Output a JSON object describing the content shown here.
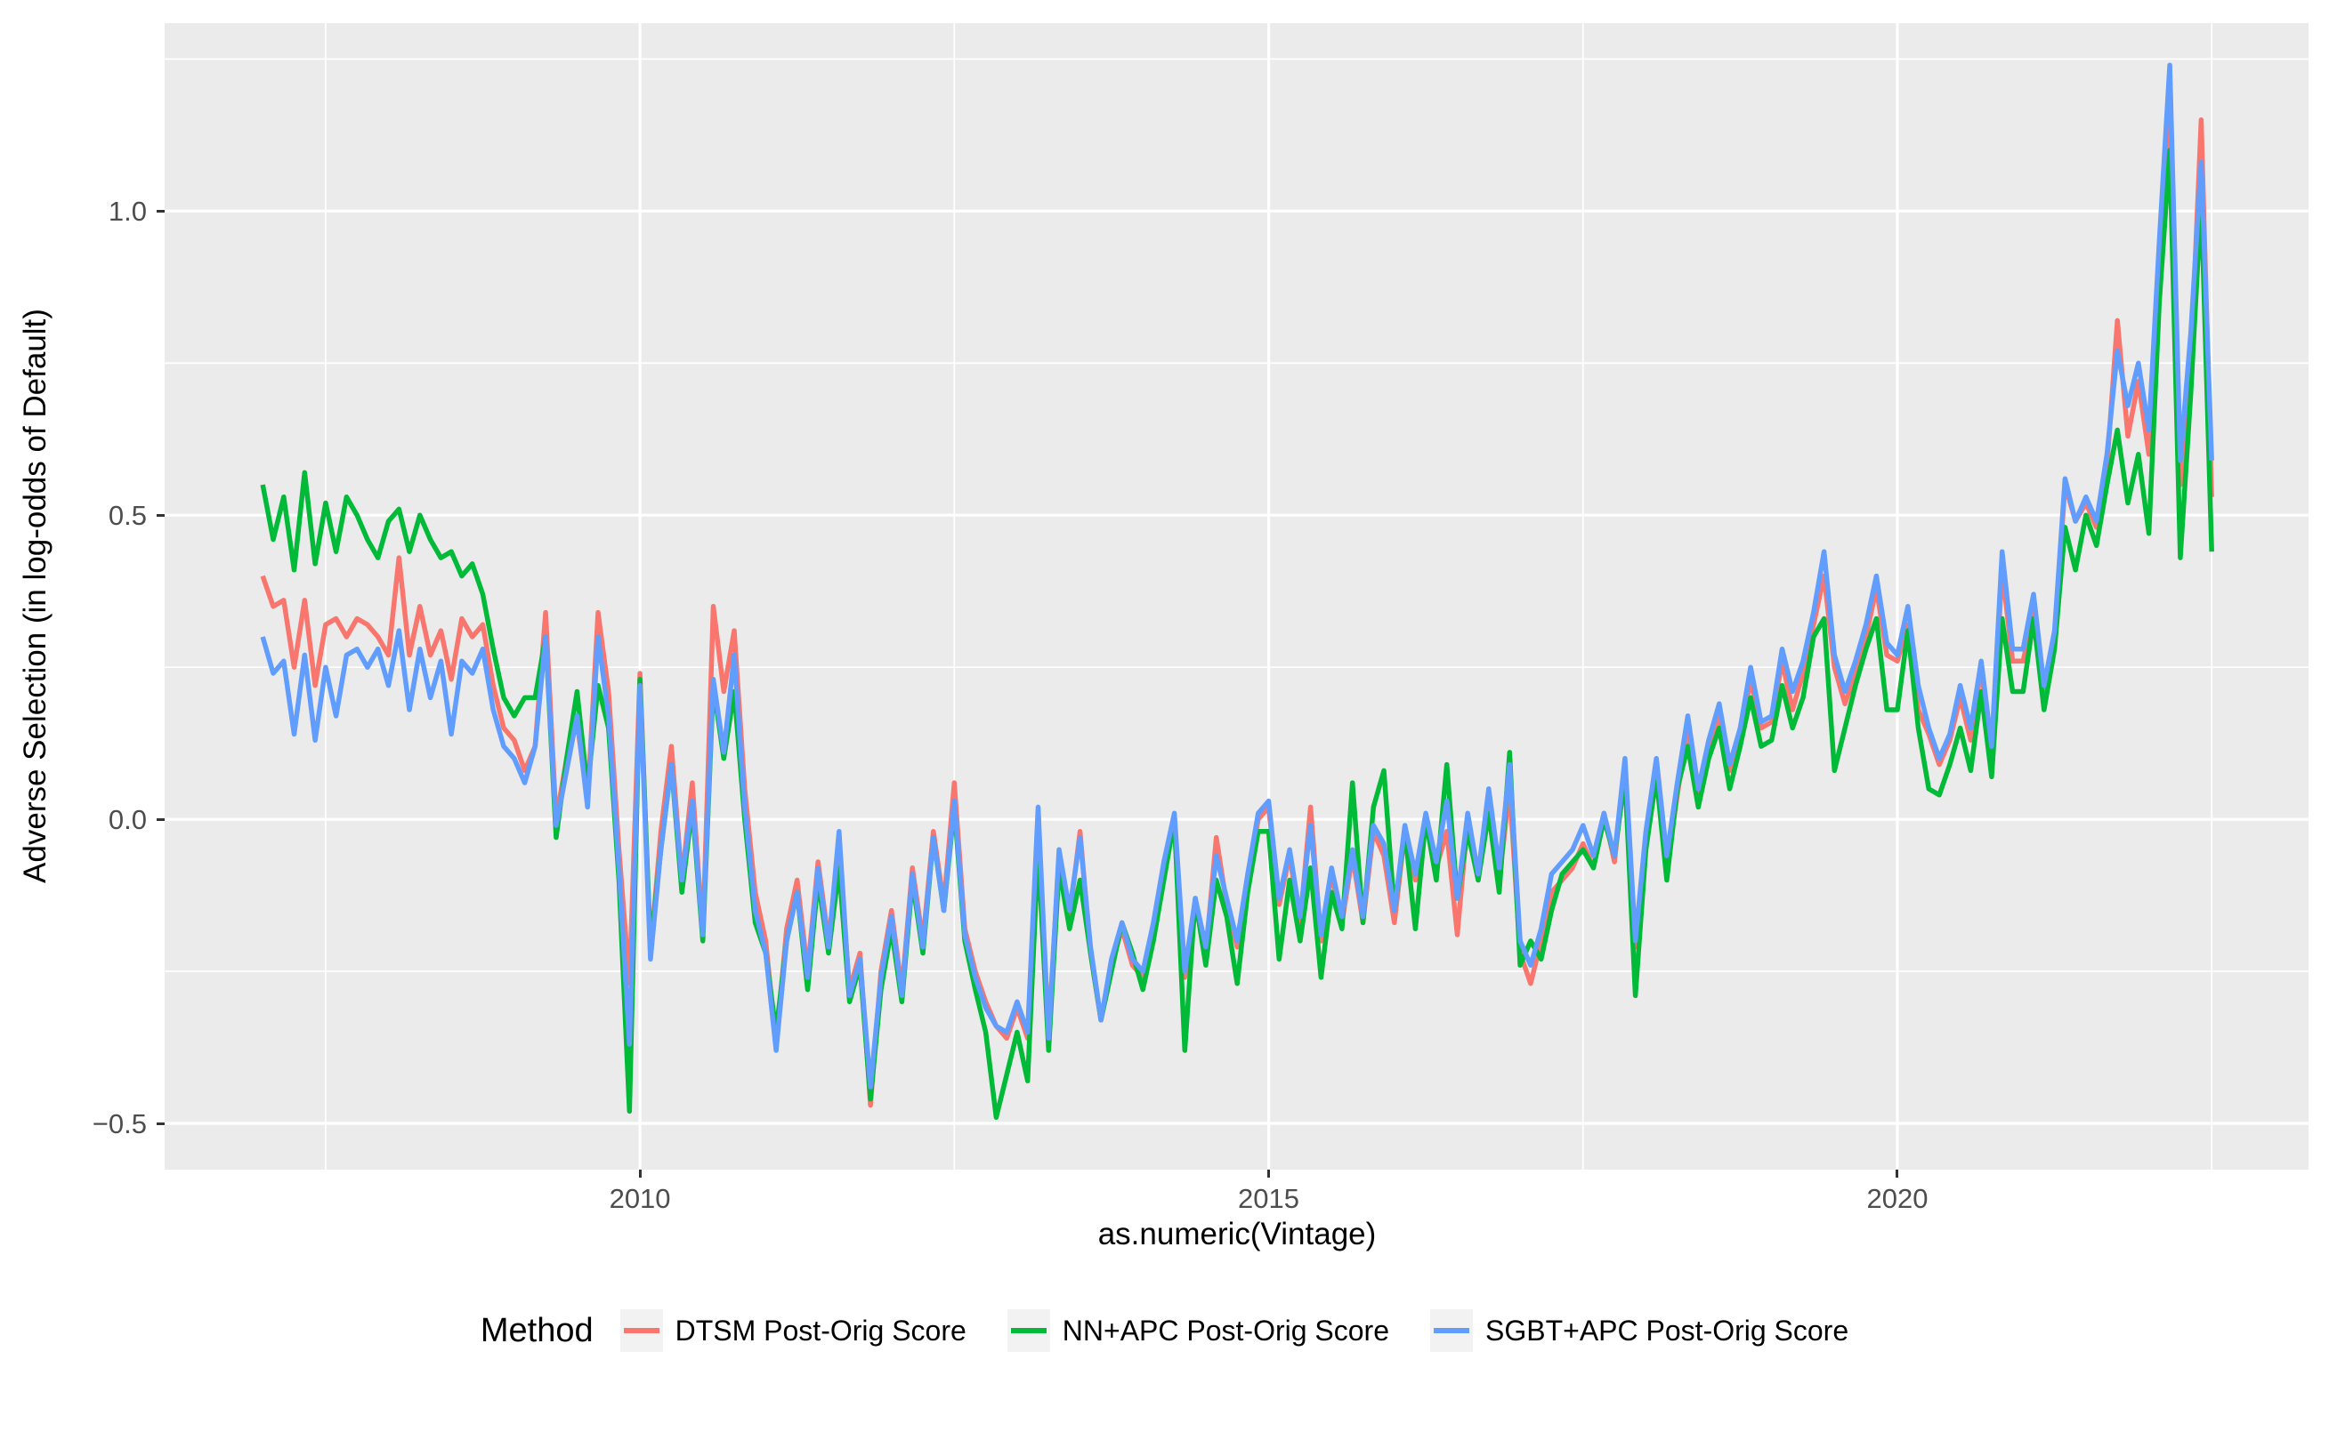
{
  "figure": {
    "y_axis_title": "Adverse Selection (in log-odds of Default)",
    "x_axis_title": "as.numeric(Vintage)"
  },
  "legend": {
    "title": "Method",
    "items": [
      {
        "label": "DTSM Post-Orig Score",
        "color": "#F8766D"
      },
      {
        "label": "NN+APC Post-Orig Score",
        "color": "#00BA38"
      },
      {
        "label": "SGBT+APC Post-Orig Score",
        "color": "#619CFF"
      }
    ]
  },
  "chart_data": {
    "type": "line",
    "title": "",
    "xlabel": "as.numeric(Vintage)",
    "ylabel": "Adverse Selection (in log-odds of Default)",
    "x_domain": [
      2006.22,
      2023.27
    ],
    "y_domain": [
      -0.576,
      1.309
    ],
    "x_ticks": [
      {
        "value": 2010,
        "label": "2010"
      },
      {
        "value": 2015,
        "label": "2015"
      },
      {
        "value": 2020,
        "label": "2020"
      }
    ],
    "y_ticks": [
      {
        "value": -0.5,
        "label": "−0.5"
      },
      {
        "value": 0.0,
        "label": "0.0"
      },
      {
        "value": 0.5,
        "label": "0.5"
      },
      {
        "value": 1.0,
        "label": "1.0"
      }
    ],
    "x_minor": [
      2007.5,
      2012.5,
      2017.5,
      2022.5
    ],
    "y_minor": [
      -0.25,
      0.25,
      0.75,
      1.25
    ],
    "panel_bg": "#EBEBEB",
    "grid_color": "#FFFFFF",
    "tick_color": "#333333",
    "tick_label_color": "#4D4D4D",
    "x_start": 2007.0,
    "x_step": 0.0833333,
    "n_points": 187,
    "series": [
      {
        "name": "DTSM Post-Orig Score",
        "color": "#F8766D",
        "values": [
          0.4,
          0.35,
          0.36,
          0.25,
          0.36,
          0.22,
          0.32,
          0.33,
          0.3,
          0.33,
          0.32,
          0.3,
          0.27,
          0.43,
          0.27,
          0.35,
          0.27,
          0.31,
          0.23,
          0.33,
          0.3,
          0.32,
          0.22,
          0.15,
          0.13,
          0.08,
          0.12,
          0.34,
          0.0,
          0.1,
          0.16,
          0.03,
          0.34,
          0.21,
          -0.05,
          -0.27,
          0.24,
          -0.22,
          -0.02,
          0.12,
          -0.1,
          0.06,
          -0.19,
          0.35,
          0.21,
          0.31,
          0.05,
          -0.12,
          -0.2,
          -0.37,
          -0.18,
          -0.1,
          -0.25,
          -0.07,
          -0.2,
          -0.05,
          -0.28,
          -0.22,
          -0.47,
          -0.25,
          -0.15,
          -0.28,
          -0.08,
          -0.2,
          -0.02,
          -0.14,
          0.06,
          -0.18,
          -0.25,
          -0.3,
          -0.34,
          -0.36,
          -0.31,
          -0.36,
          -0.02,
          -0.35,
          -0.06,
          -0.16,
          -0.02,
          -0.22,
          -0.33,
          -0.24,
          -0.18,
          -0.24,
          -0.26,
          -0.18,
          -0.08,
          -0.01,
          -0.26,
          -0.14,
          -0.22,
          -0.03,
          -0.14,
          -0.21,
          -0.1,
          0.0,
          0.02,
          -0.14,
          -0.06,
          -0.17,
          0.02,
          -0.2,
          -0.09,
          -0.17,
          -0.06,
          -0.17,
          -0.02,
          -0.06,
          -0.17,
          -0.02,
          -0.1,
          0.0,
          -0.08,
          -0.02,
          -0.19,
          0.0,
          -0.1,
          0.03,
          -0.1,
          0.05,
          -0.22,
          -0.27,
          -0.2,
          -0.12,
          -0.1,
          -0.08,
          -0.04,
          -0.08,
          0.01,
          -0.07,
          0.09,
          -0.21,
          -0.04,
          0.08,
          -0.08,
          0.04,
          0.15,
          0.04,
          0.12,
          0.17,
          0.08,
          0.14,
          0.23,
          0.15,
          0.16,
          0.26,
          0.18,
          0.24,
          0.32,
          0.4,
          0.25,
          0.19,
          0.24,
          0.3,
          0.38,
          0.27,
          0.26,
          0.32,
          0.18,
          0.14,
          0.09,
          0.13,
          0.2,
          0.13,
          0.25,
          0.1,
          0.41,
          0.26,
          0.26,
          0.34,
          0.2,
          0.3,
          0.55,
          0.49,
          0.52,
          0.48,
          0.58,
          0.82,
          0.63,
          0.72,
          0.6,
          0.92,
          1.18,
          0.55,
          0.75,
          1.15,
          0.53
        ]
      },
      {
        "name": "NN+APC Post-Orig Score",
        "color": "#00BA38",
        "values": [
          0.55,
          0.46,
          0.53,
          0.41,
          0.57,
          0.42,
          0.52,
          0.44,
          0.53,
          0.5,
          0.46,
          0.43,
          0.49,
          0.51,
          0.44,
          0.5,
          0.46,
          0.43,
          0.44,
          0.4,
          0.42,
          0.37,
          0.28,
          0.2,
          0.17,
          0.2,
          0.2,
          0.3,
          -0.03,
          0.1,
          0.21,
          0.05,
          0.22,
          0.15,
          -0.1,
          -0.48,
          0.23,
          -0.21,
          -0.05,
          0.09,
          -0.12,
          0.02,
          -0.2,
          0.22,
          0.1,
          0.21,
          0.0,
          -0.17,
          -0.22,
          -0.35,
          -0.2,
          -0.12,
          -0.28,
          -0.1,
          -0.22,
          -0.08,
          -0.3,
          -0.24,
          -0.46,
          -0.28,
          -0.18,
          -0.3,
          -0.1,
          -0.22,
          -0.03,
          -0.15,
          0.02,
          -0.2,
          -0.28,
          -0.35,
          -0.49,
          -0.42,
          -0.35,
          -0.43,
          -0.05,
          -0.38,
          -0.08,
          -0.18,
          -0.1,
          -0.22,
          -0.33,
          -0.25,
          -0.17,
          -0.22,
          -0.28,
          -0.2,
          -0.1,
          0.0,
          -0.38,
          -0.13,
          -0.24,
          -0.1,
          -0.16,
          -0.27,
          -0.12,
          -0.02,
          -0.02,
          -0.23,
          -0.1,
          -0.2,
          -0.08,
          -0.26,
          -0.12,
          -0.18,
          0.06,
          -0.17,
          0.02,
          0.08,
          -0.15,
          -0.02,
          -0.18,
          0.0,
          -0.1,
          0.09,
          -0.13,
          -0.02,
          -0.1,
          0.01,
          -0.12,
          0.11,
          -0.24,
          -0.2,
          -0.23,
          -0.15,
          -0.09,
          -0.07,
          -0.05,
          -0.08,
          0.0,
          -0.06,
          0.07,
          -0.29,
          -0.05,
          0.07,
          -0.1,
          0.05,
          0.12,
          0.02,
          0.1,
          0.15,
          0.05,
          0.12,
          0.2,
          0.12,
          0.13,
          0.22,
          0.15,
          0.2,
          0.3,
          0.33,
          0.08,
          0.15,
          0.22,
          0.28,
          0.33,
          0.18,
          0.18,
          0.31,
          0.15,
          0.05,
          0.04,
          0.09,
          0.15,
          0.08,
          0.21,
          0.07,
          0.33,
          0.21,
          0.21,
          0.33,
          0.18,
          0.28,
          0.48,
          0.41,
          0.5,
          0.45,
          0.55,
          0.64,
          0.52,
          0.6,
          0.47,
          0.85,
          1.1,
          0.43,
          0.7,
          1.02,
          0.44
        ]
      },
      {
        "name": "SGBT+APC Post-Orig Score",
        "color": "#619CFF",
        "values": [
          0.3,
          0.24,
          0.26,
          0.14,
          0.27,
          0.13,
          0.25,
          0.17,
          0.27,
          0.28,
          0.25,
          0.28,
          0.22,
          0.31,
          0.18,
          0.28,
          0.2,
          0.26,
          0.14,
          0.26,
          0.24,
          0.28,
          0.18,
          0.12,
          0.1,
          0.06,
          0.12,
          0.3,
          -0.01,
          0.08,
          0.17,
          0.02,
          0.3,
          0.17,
          -0.08,
          -0.37,
          0.22,
          -0.23,
          -0.05,
          0.09,
          -0.1,
          0.03,
          -0.19,
          0.23,
          0.11,
          0.27,
          0.02,
          -0.15,
          -0.22,
          -0.38,
          -0.2,
          -0.12,
          -0.26,
          -0.08,
          -0.21,
          -0.02,
          -0.29,
          -0.23,
          -0.44,
          -0.26,
          -0.16,
          -0.29,
          -0.09,
          -0.21,
          -0.03,
          -0.15,
          0.03,
          -0.19,
          -0.26,
          -0.31,
          -0.34,
          -0.35,
          -0.3,
          -0.35,
          0.02,
          -0.36,
          -0.05,
          -0.15,
          -0.03,
          -0.21,
          -0.33,
          -0.23,
          -0.17,
          -0.23,
          -0.25,
          -0.17,
          -0.07,
          0.01,
          -0.25,
          -0.13,
          -0.21,
          -0.06,
          -0.13,
          -0.2,
          -0.09,
          0.01,
          0.03,
          -0.13,
          -0.05,
          -0.16,
          -0.01,
          -0.19,
          -0.08,
          -0.16,
          -0.05,
          -0.16,
          -0.01,
          -0.04,
          -0.15,
          -0.01,
          -0.09,
          0.01,
          -0.07,
          0.03,
          -0.13,
          0.01,
          -0.09,
          0.05,
          -0.08,
          0.09,
          -0.2,
          -0.24,
          -0.18,
          -0.09,
          -0.07,
          -0.05,
          -0.01,
          -0.06,
          0.01,
          -0.06,
          0.1,
          -0.2,
          -0.02,
          0.1,
          -0.06,
          0.06,
          0.17,
          0.05,
          0.13,
          0.19,
          0.09,
          0.15,
          0.25,
          0.16,
          0.17,
          0.28,
          0.21,
          0.26,
          0.34,
          0.44,
          0.27,
          0.21,
          0.26,
          0.32,
          0.4,
          0.29,
          0.27,
          0.35,
          0.22,
          0.15,
          0.1,
          0.14,
          0.22,
          0.15,
          0.26,
          0.12,
          0.44,
          0.28,
          0.28,
          0.37,
          0.22,
          0.31,
          0.56,
          0.49,
          0.53,
          0.49,
          0.6,
          0.77,
          0.68,
          0.75,
          0.64,
          0.95,
          1.24,
          0.59,
          0.8,
          1.08,
          0.59
        ]
      }
    ],
    "legend_position": "bottom",
    "grid": true
  }
}
